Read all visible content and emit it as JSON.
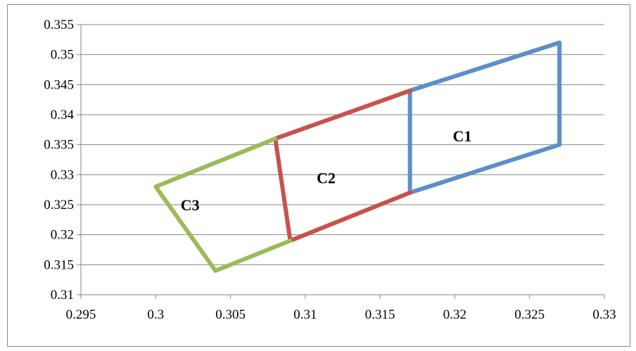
{
  "chart_data": {
    "type": "line",
    "title": "",
    "xlabel": "",
    "ylabel": "",
    "xlim": [
      0.295,
      0.33
    ],
    "ylim": [
      0.31,
      0.355
    ],
    "x_ticks": [
      "0.295",
      "0.3",
      "0.305",
      "0.31",
      "0.315",
      "0.32",
      "0.325",
      "0.33"
    ],
    "y_ticks": [
      "0.31",
      "0.315",
      "0.32",
      "0.325",
      "0.33",
      "0.335",
      "0.34",
      "0.345",
      "0.35",
      "0.355"
    ],
    "grid": "horizontal",
    "legend": "none",
    "series": [
      {
        "label": "C1",
        "color": "#5b8fc7",
        "points": [
          [
            0.317,
            0.344
          ],
          [
            0.327,
            0.352
          ],
          [
            0.327,
            0.335
          ],
          [
            0.317,
            0.327
          ],
          [
            0.317,
            0.344
          ]
        ],
        "label_at": [
          0.3205,
          0.3365
        ]
      },
      {
        "label": "C2",
        "color": "#c8524c",
        "points": [
          [
            0.317,
            0.344
          ],
          [
            0.308,
            0.336
          ],
          [
            0.309,
            0.319
          ],
          [
            0.317,
            0.327
          ]
        ],
        "label_at": [
          0.3114,
          0.3295
        ]
      },
      {
        "label": "C3",
        "color": "#9bbb59",
        "points": [
          [
            0.308,
            0.336
          ],
          [
            0.3,
            0.328
          ],
          [
            0.304,
            0.314
          ],
          [
            0.309,
            0.319
          ]
        ],
        "label_at": [
          0.3023,
          0.325
        ]
      }
    ]
  }
}
